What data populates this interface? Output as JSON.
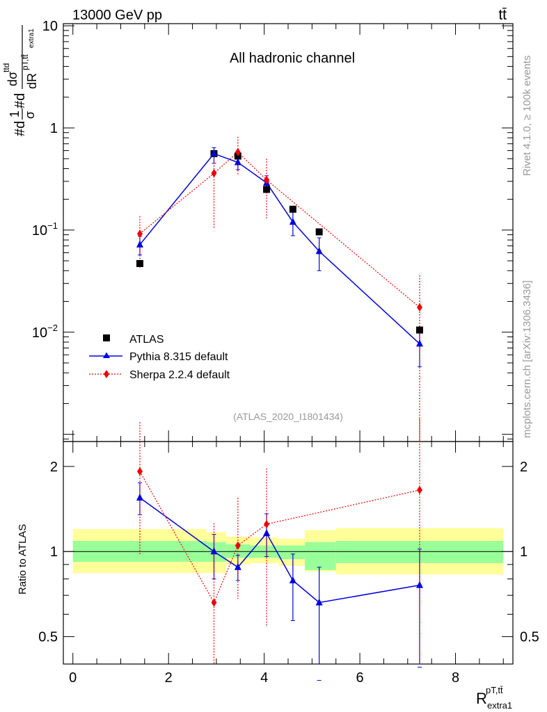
{
  "header": {
    "energy_label": "13000 GeV pp",
    "process_label": "tt̄",
    "channel_label": "All hadronic channel",
    "analysis_tag": "(ATLAS_2020_I1801434)",
    "side_text_top": "Rivet 4.1.0, ≥ 100k events",
    "side_text_bottom": "mcplots.cern.ch [arXiv:1306.3436]"
  },
  "axes": {
    "y_main_label": {
      "p1": "#d",
      "frac1": "1",
      "sigma": "σ",
      "p2": "#d",
      "num_d": "dσ",
      "num_sup": "ttd",
      "den_R": "dR",
      "den_sup": "pT,tt̄",
      "den_sub": "extra1"
    },
    "y_ratio_label": "Ratio to ATLAS",
    "x_label": {
      "base": "R",
      "sup": "pT,tt̄",
      "sub": "extra1"
    },
    "main_y_ticks": [
      {
        "value": 10,
        "base": "10",
        "exp": ""
      },
      {
        "value": 1,
        "base": "1",
        "exp": ""
      },
      {
        "value": 0.1,
        "base": "10",
        "exp": "−1"
      },
      {
        "value": 0.01,
        "base": "10",
        "exp": "−2"
      }
    ],
    "ratio_y_ticks": [
      {
        "value": 2,
        "label": "2"
      },
      {
        "value": 1,
        "label": "1"
      },
      {
        "value": 0.5,
        "label": "0.5"
      }
    ],
    "x_ticks": [
      {
        "value": 0,
        "label": "0"
      },
      {
        "value": 2,
        "label": "2"
      },
      {
        "value": 4,
        "label": "4"
      },
      {
        "value": 6,
        "label": "6"
      },
      {
        "value": 8,
        "label": "8"
      }
    ]
  },
  "legend": [
    {
      "name": "ATLAS",
      "color": "#000000",
      "marker": "square"
    },
    {
      "name": "Pythia 8.315 default",
      "color": "#0000dd",
      "marker": "triangle"
    },
    {
      "name": "Sherpa 2.2.4 default",
      "color": "#ee0000",
      "marker": "diamond"
    }
  ],
  "colors": {
    "band_inner": "#99ff99",
    "band_outer": "#ffff99",
    "pythia": "#0000dd",
    "sherpa": "#ee0000",
    "atlas": "#000000"
  },
  "chart_data": [
    {
      "type": "line",
      "title": "All hadronic channel",
      "xlabel": "R_extra1^{pT,tt}",
      "ylabel": "1/σ dσ/dR",
      "yscale": "log",
      "xlim": [
        -0.2,
        9.2
      ],
      "ylim": [
        0.00085,
        10.5
      ],
      "series": [
        {
          "name": "ATLAS",
          "x": [
            1.4,
            2.95,
            3.45,
            4.05,
            4.6,
            5.15,
            7.25
          ],
          "y": [
            0.047,
            0.56,
            0.53,
            0.25,
            0.16,
            0.096,
            0.0105
          ],
          "yerr_lo": [
            0,
            0,
            0,
            0,
            0,
            0,
            0
          ],
          "yerr_hi": [
            0,
            0,
            0,
            0,
            0,
            0,
            0
          ]
        },
        {
          "name": "Pythia 8.315 default",
          "x": [
            1.4,
            2.95,
            3.45,
            4.05,
            4.6,
            5.15,
            7.25
          ],
          "y": [
            0.072,
            0.56,
            0.46,
            0.29,
            0.12,
            0.062,
            0.0077
          ],
          "yerr_lo": [
            0.015,
            0.11,
            0.07,
            0.05,
            0.032,
            0.022,
            0.0031
          ],
          "yerr_hi": [
            0.015,
            0.08,
            0.05,
            0.05,
            0.032,
            0.022,
            0.0034
          ]
        },
        {
          "name": "Sherpa 2.2.4 default",
          "x": [
            1.4,
            2.95,
            3.45,
            4.05,
            4.6,
            5.15,
            7.25
          ],
          "y": [
            0.092,
            0.36,
            0.58,
            0.31,
            null,
            null,
            0.0175
          ],
          "yerr_lo": [
            0.05,
            0.255,
            0.24,
            0.18,
            null,
            null,
            0.017
          ],
          "yerr_hi": [
            0.045,
            0.23,
            0.24,
            0.19,
            null,
            null,
            0.0185
          ]
        }
      ]
    },
    {
      "type": "line",
      "ylabel": "Ratio to ATLAS",
      "yscale": "log",
      "xlim": [
        -0.2,
        9.2
      ],
      "ylim": [
        0.4,
        2.45
      ],
      "bands": [
        {
          "x0": 0.0,
          "x1": 2.8,
          "inner": [
            0.92,
            1.09
          ],
          "outer": [
            0.84,
            1.2
          ]
        },
        {
          "x0": 2.8,
          "x1": 3.2,
          "inner": [
            0.92,
            1.08
          ],
          "outer": [
            0.84,
            1.17
          ]
        },
        {
          "x0": 3.2,
          "x1": 3.7,
          "inner": [
            0.95,
            1.06
          ],
          "outer": [
            0.9,
            1.13
          ]
        },
        {
          "x0": 3.7,
          "x1": 4.3,
          "inner": [
            0.95,
            1.05
          ],
          "outer": [
            0.91,
            1.12
          ]
        },
        {
          "x0": 4.3,
          "x1": 4.85,
          "inner": [
            0.94,
            1.05
          ],
          "outer": [
            0.89,
            1.11
          ]
        },
        {
          "x0": 4.85,
          "x1": 5.5,
          "inner": [
            0.86,
            1.08
          ],
          "outer": [
            0.85,
            1.19
          ]
        },
        {
          "x0": 5.5,
          "x1": 9.0,
          "inner": [
            0.91,
            1.09
          ],
          "outer": [
            0.83,
            1.21
          ]
        }
      ],
      "series": [
        {
          "name": "Pythia 8.315 default",
          "x": [
            1.4,
            2.95,
            3.45,
            4.05,
            4.6,
            5.15,
            7.25
          ],
          "y": [
            1.55,
            1.0,
            0.88,
            1.16,
            0.79,
            0.66,
            0.76
          ],
          "yerr_lo": [
            0.2,
            0.2,
            0.09,
            0.2,
            0.22,
            0.31,
            0.37
          ],
          "yerr_hi": [
            0.2,
            0.15,
            0.09,
            0.2,
            0.19,
            0.22,
            0.26
          ]
        },
        {
          "name": "Sherpa 2.2.4 default",
          "x": [
            1.4,
            2.95,
            3.45,
            4.05,
            4.6,
            5.15,
            7.25
          ],
          "y": [
            1.92,
            0.66,
            1.05,
            1.25,
            null,
            null,
            1.65
          ],
          "yerr_lo": [
            0.95,
            0.36,
            0.37,
            0.71,
            null,
            null,
            1.4
          ],
          "yerr_hi": [
            0.95,
            0.6,
            0.5,
            0.72,
            null,
            null,
            1.3
          ]
        }
      ]
    }
  ]
}
